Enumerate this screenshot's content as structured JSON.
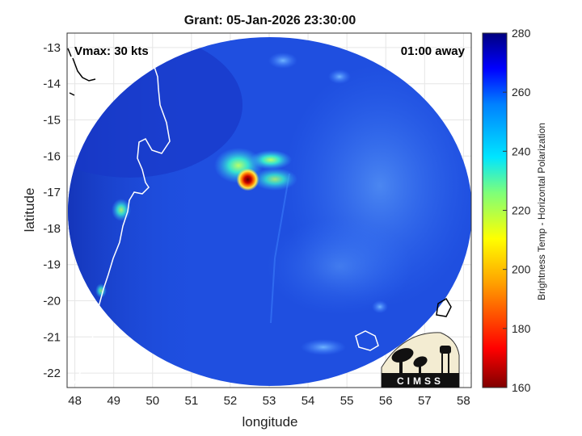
{
  "chart_data": {
    "type": "heatmap",
    "title": "Grant: 05-Jan-2026 23:30:00",
    "xlabel": "longitude",
    "ylabel": "latitude",
    "xlim": [
      47.8,
      58.2
    ],
    "ylim": [
      -22.4,
      -12.6
    ],
    "xticks": [
      48,
      49,
      50,
      51,
      52,
      53,
      54,
      55,
      56,
      57,
      58
    ],
    "yticks": [
      -13,
      -14,
      -15,
      -16,
      -17,
      -18,
      -19,
      -20,
      -21,
      -22
    ],
    "grid": true,
    "colorbar": {
      "label": "Brightness Temp - Horizontal Polarization",
      "range": [
        160,
        280
      ],
      "ticks": [
        280,
        260,
        240,
        220,
        200,
        180,
        160
      ]
    },
    "storm_center": {
      "lon": 52.45,
      "lat": -16.65,
      "min_temp": 165
    },
    "annotations": {
      "intensity": "Vmax: 30 kts",
      "time_offset": "01:00 away"
    },
    "logo": "CIMSS"
  },
  "colors": {
    "background_field": "#1f4fe0",
    "coastline": "#ffffff",
    "land_outline": "#000000"
  }
}
